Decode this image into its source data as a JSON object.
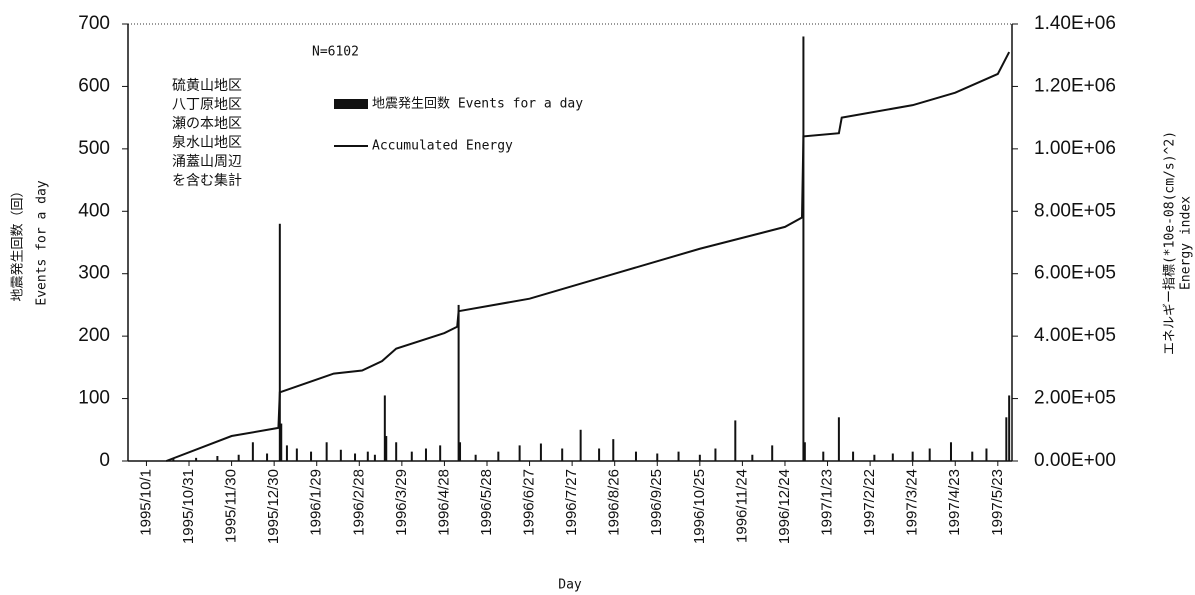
{
  "chart_data": {
    "type": "bar-line",
    "xlabel": "Day",
    "ylabel": [
      "地震発生回数（回）",
      "Events for a day"
    ],
    "y2label": [
      "エネルギー指標(*10e-08(cm/s)^2)",
      "Energy index"
    ],
    "annotations": [
      "N=6102",
      "硫黄山地区",
      "八丁原地区",
      "瀬の本地区",
      "泉水山地区",
      "涌蓋山周辺",
      "を含む集計"
    ],
    "xlim": [
      "1995/9/18",
      "1997/6/2"
    ],
    "xticks": [
      "1995/10/1",
      "1995/10/31",
      "1995/11/30",
      "1995/12/30",
      "1996/1/29",
      "1996/2/28",
      "1996/3/29",
      "1996/4/28",
      "1996/5/28",
      "1996/6/27",
      "1996/7/27",
      "1996/8/26",
      "1996/9/25",
      "1996/10/25",
      "1996/11/24",
      "1996/12/24",
      "1997/1/23",
      "1997/2/22",
      "1997/3/24",
      "1997/4/23",
      "1997/5/23"
    ],
    "ylim": [
      0,
      700
    ],
    "yticks": [
      0,
      100,
      200,
      300,
      400,
      500,
      600,
      700
    ],
    "y2lim": [
      0,
      1400000
    ],
    "y2ticks": [
      {
        "value": 0,
        "label": "0.00E+00"
      },
      {
        "value": 200000,
        "label": "2.00E+05"
      },
      {
        "value": 400000,
        "label": "4.00E+05"
      },
      {
        "value": 600000,
        "label": "6.00E+05"
      },
      {
        "value": 800000,
        "label": "8.00E+05"
      },
      {
        "value": 1000000,
        "label": "1.00E+06"
      },
      {
        "value": 1200000,
        "label": "1.20E+06"
      },
      {
        "value": 1400000,
        "label": "1.40E+06"
      }
    ],
    "legend": "upper-left",
    "series": [
      {
        "name": "地震発生回数 Events for a day",
        "type": "bar",
        "color": "#111111",
        "x": [
          "1995/10/20",
          "1995/11/5",
          "1995/11/20",
          "1995/12/5",
          "1995/12/15",
          "1995/12/25",
          "1996/1/3",
          "1996/1/4",
          "1996/1/8",
          "1996/1/15",
          "1996/1/25",
          "1996/2/5",
          "1996/2/15",
          "1996/2/25",
          "1996/3/5",
          "1996/3/10",
          "1996/3/17",
          "1996/3/18",
          "1996/3/25",
          "1996/4/5",
          "1996/4/15",
          "1996/4/25",
          "1996/5/8",
          "1996/5/9",
          "1996/5/20",
          "1996/6/5",
          "1996/6/20",
          "1996/7/5",
          "1996/7/20",
          "1996/8/2",
          "1996/8/15",
          "1996/8/25",
          "1996/9/10",
          "1996/9/25",
          "1996/10/10",
          "1996/10/25",
          "1996/11/5",
          "1996/11/19",
          "1996/12/1",
          "1996/12/15",
          "1997/1/6",
          "1997/1/7",
          "1997/1/20",
          "1997/1/31",
          "1997/2/10",
          "1997/2/25",
          "1997/3/10",
          "1997/3/24",
          "1997/4/5",
          "1997/4/20",
          "1997/5/5",
          "1997/5/15",
          "1997/5/29",
          "1997/5/31"
        ],
        "values": [
          3,
          5,
          8,
          10,
          30,
          12,
          380,
          60,
          25,
          20,
          15,
          30,
          18,
          12,
          15,
          10,
          105,
          40,
          30,
          15,
          20,
          25,
          250,
          30,
          10,
          15,
          25,
          28,
          20,
          50,
          20,
          35,
          15,
          12,
          15,
          10,
          20,
          65,
          10,
          25,
          680,
          30,
          15,
          70,
          15,
          10,
          12,
          15,
          20,
          30,
          15,
          20,
          70,
          105
        ]
      },
      {
        "name": "Accumulated Energy",
        "type": "line",
        "axis": "y2",
        "color": "#111111",
        "x": [
          "1995/10/15",
          "1995/11/30",
          "1996/1/2",
          "1996/1/3",
          "1996/2/10",
          "1996/3/1",
          "1996/3/15",
          "1996/3/25",
          "1996/4/28",
          "1996/5/7",
          "1996/5/8",
          "1996/6/27",
          "1996/8/26",
          "1996/10/25",
          "1996/12/24",
          "1997/1/5",
          "1997/1/6",
          "1997/1/31",
          "1997/2/2",
          "1997/3/24",
          "1997/4/23",
          "1997/5/23",
          "1997/5/31"
        ],
        "values": [
          0,
          80000,
          106000,
          220000,
          280000,
          290000,
          320000,
          360000,
          410000,
          430000,
          480000,
          520000,
          600000,
          680000,
          750000,
          780000,
          1040000,
          1050000,
          1100000,
          1140000,
          1180000,
          1240000,
          1310000
        ]
      }
    ]
  }
}
